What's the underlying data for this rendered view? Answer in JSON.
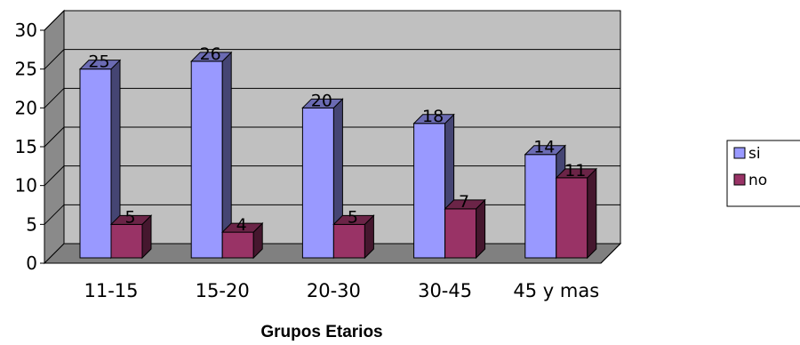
{
  "chart_data": {
    "type": "bar",
    "title": "",
    "xlabel": "Grupos Etarios",
    "ylabel": "",
    "ylim": [
      0,
      30
    ],
    "yticks": [
      0,
      5,
      10,
      15,
      20,
      25,
      30
    ],
    "grid": true,
    "categories": [
      "11-15",
      "15-20",
      "20-30",
      "30-45",
      "45 y mas"
    ],
    "series": [
      {
        "name": "si",
        "values": [
          25,
          26,
          20,
          18,
          14
        ],
        "color": "#9999FF"
      },
      {
        "name": "no",
        "values": [
          5,
          4,
          5,
          7,
          11
        ],
        "color": "#993366"
      }
    ],
    "legend_position": "right",
    "background_color": "#C0C0C0"
  }
}
